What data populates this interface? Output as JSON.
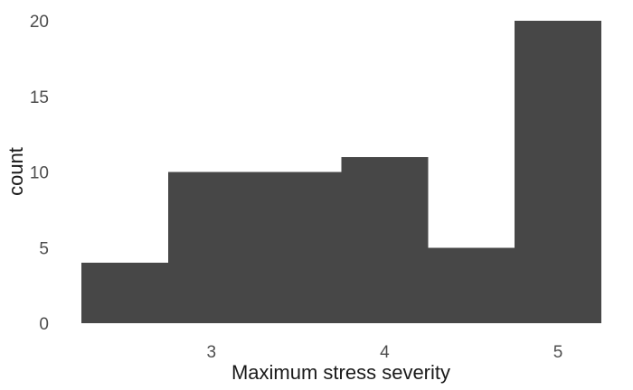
{
  "chart_data": {
    "type": "bar",
    "title": "",
    "xlabel": "Maximum stress severity",
    "ylabel": "count",
    "bins": [
      {
        "x0": 2.25,
        "x1": 2.75,
        "count": 4
      },
      {
        "x0": 2.75,
        "x1": 3.25,
        "count": 10
      },
      {
        "x0": 3.25,
        "x1": 3.75,
        "count": 10
      },
      {
        "x0": 3.75,
        "x1": 4.25,
        "count": 11
      },
      {
        "x0": 4.25,
        "x1": 4.75,
        "count": 5
      },
      {
        "x0": 4.75,
        "x1": 5.25,
        "count": 20
      }
    ],
    "xlim": [
      2.25,
      5.25
    ],
    "ylim": [
      0,
      20
    ],
    "xticks": [
      3,
      4,
      5
    ],
    "yticks": [
      0,
      5,
      10,
      15,
      20
    ],
    "bar_color": "#474747",
    "grid": false,
    "legend": "none"
  }
}
